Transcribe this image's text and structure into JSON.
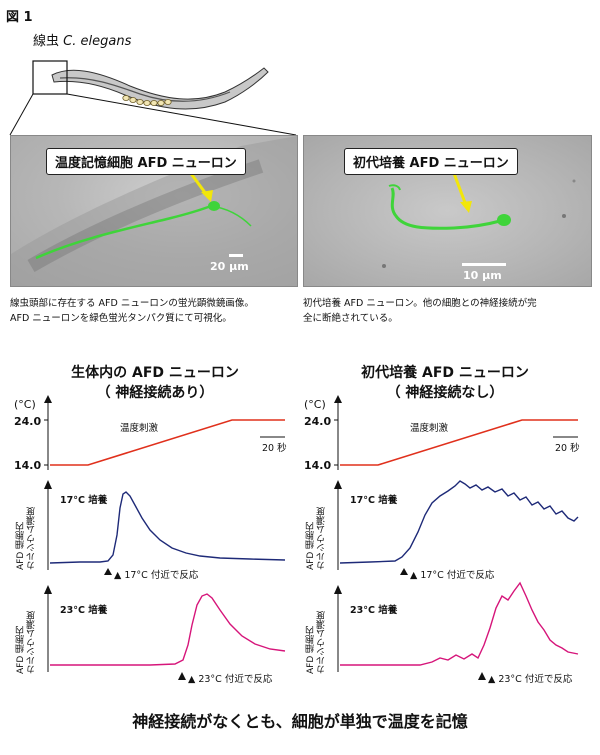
{
  "figure_label": "図 1",
  "worm": {
    "label_jp": "線虫",
    "label_species": "C. elegans"
  },
  "images": {
    "left": {
      "callout": "温度記憶細胞 AFD ニューロン",
      "scale": "20 μm",
      "caption_line1": "線虫頭部に存在する AFD ニューロンの蛍光顕微鏡画像。",
      "caption_line2": "AFD ニューロンを緑色蛍光タンパク質にて可視化。"
    },
    "right": {
      "callout": "初代培養 AFD ニューロン",
      "scale": "10 μm",
      "caption_line1": "初代培養 AFD ニューロン。他の細胞との神経接続が完",
      "caption_line2": "全に断絶されている。"
    }
  },
  "panels": {
    "left": {
      "title_line1": "生体内の AFD ニューロン",
      "title_line2": "（ 神経接続あり）"
    },
    "right": {
      "title_line1": "初代培養 AFD ニューロン",
      "title_line2": "（ 神経接続なし）"
    }
  },
  "stimulus": {
    "unit": "(°C)",
    "high": "24.0",
    "low": "14.0",
    "label": "温度刺激",
    "time_scale": "20 秒"
  },
  "calcium": {
    "ylabel_line1": "AFD 細胞内",
    "ylabel_line2": "カルシウム濃度",
    "row17_label": "17°C 培養",
    "row17_marker": "▲ 17°C 付近で反応",
    "row23_label": "23°C 培養",
    "row23_marker": "▲ 23°C 付近で反応"
  },
  "footer": "神経接続がなくとも、細胞が単独で温度を記憶",
  "colors": {
    "stimulus": "#e0301c",
    "trace17": "#1e2a78",
    "trace23": "#d6157a",
    "gfp": "#3fd43a"
  }
}
